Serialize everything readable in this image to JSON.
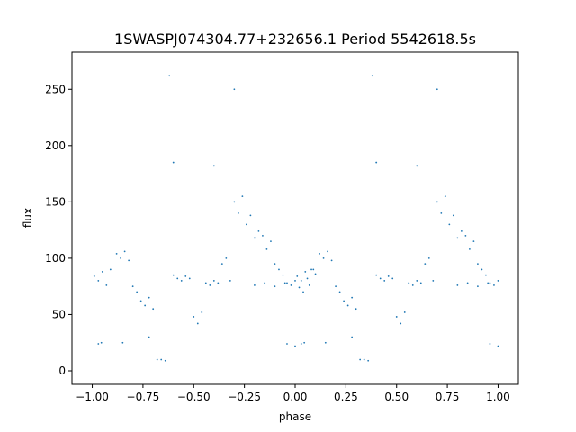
{
  "chart_data": {
    "type": "scatter",
    "title": "1SWASPJ074304.77+232656.1 Period 5542618.5s",
    "xlabel": "phase",
    "ylabel": "flux",
    "xlim": [
      -1.1,
      1.1
    ],
    "ylim": [
      -12,
      283
    ],
    "xticks": [
      -1.0,
      -0.75,
      -0.5,
      -0.25,
      0.0,
      0.25,
      0.5,
      0.75,
      1.0
    ],
    "xtick_labels": [
      "−1.00",
      "−0.75",
      "−0.50",
      "−0.25",
      "0.00",
      "0.25",
      "0.50",
      "0.75",
      "1.00"
    ],
    "yticks": [
      0,
      50,
      100,
      150,
      200,
      250
    ],
    "ytick_labels": [
      "0",
      "50",
      "100",
      "150",
      "200",
      "250"
    ],
    "grid": false,
    "marker_color": "#1f77b4",
    "series": [
      {
        "values_note": "phase-folded light curve repeated over two cycles (points at phase p and p+1)",
        "points": [
          [
            -0.99,
            84
          ],
          [
            -0.97,
            80
          ],
          [
            -0.95,
            88
          ],
          [
            -0.93,
            76
          ],
          [
            -0.91,
            90
          ],
          [
            -0.97,
            24
          ],
          [
            -0.955,
            25
          ],
          [
            -0.88,
            104
          ],
          [
            -0.86,
            100
          ],
          [
            -0.84,
            106
          ],
          [
            -0.82,
            98
          ],
          [
            -0.8,
            75
          ],
          [
            -0.78,
            70
          ],
          [
            -0.76,
            62
          ],
          [
            -0.74,
            58
          ],
          [
            -0.72,
            65
          ],
          [
            -0.7,
            55
          ],
          [
            -0.68,
            10
          ],
          [
            -0.66,
            10
          ],
          [
            -0.64,
            9
          ],
          [
            -0.6,
            85
          ],
          [
            -0.58,
            82
          ],
          [
            -0.56,
            80
          ],
          [
            -0.54,
            84
          ],
          [
            -0.52,
            82
          ],
          [
            -0.5,
            48
          ],
          [
            -0.48,
            42
          ],
          [
            -0.46,
            52
          ],
          [
            -0.44,
            78
          ],
          [
            -0.42,
            76
          ],
          [
            -0.4,
            80
          ],
          [
            -0.38,
            78
          ],
          [
            -0.36,
            95
          ],
          [
            -0.34,
            100
          ],
          [
            -0.32,
            80
          ],
          [
            -0.3,
            150
          ],
          [
            -0.28,
            140
          ],
          [
            -0.26,
            155
          ],
          [
            -0.24,
            130
          ],
          [
            -0.22,
            138
          ],
          [
            -0.2,
            118
          ],
          [
            -0.18,
            124
          ],
          [
            -0.16,
            120
          ],
          [
            -0.14,
            108
          ],
          [
            -0.12,
            115
          ],
          [
            -0.1,
            95
          ],
          [
            -0.08,
            90
          ],
          [
            -0.06,
            85
          ],
          [
            -0.04,
            78
          ],
          [
            -0.02,
            76
          ],
          [
            0.0,
            80
          ],
          [
            0.02,
            74
          ],
          [
            0.04,
            70
          ],
          [
            0.06,
            82
          ],
          [
            0.08,
            90
          ],
          [
            0.1,
            86
          ],
          [
            -0.2,
            76
          ],
          [
            -0.15,
            78
          ],
          [
            -0.1,
            75
          ],
          [
            -0.05,
            78
          ],
          [
            0.0,
            22
          ],
          [
            -0.04,
            24
          ],
          [
            -0.6,
            185
          ],
          [
            -0.4,
            182
          ],
          [
            -0.3,
            250
          ],
          [
            -0.62,
            262
          ],
          [
            -0.85,
            25
          ],
          [
            -0.72,
            30
          ],
          [
            0.01,
            84
          ],
          [
            0.03,
            80
          ],
          [
            0.05,
            88
          ],
          [
            0.07,
            76
          ],
          [
            0.09,
            90
          ],
          [
            0.03,
            24
          ],
          [
            0.045,
            25
          ],
          [
            0.12,
            104
          ],
          [
            0.14,
            100
          ],
          [
            0.16,
            106
          ],
          [
            0.18,
            98
          ],
          [
            0.2,
            75
          ],
          [
            0.22,
            70
          ],
          [
            0.24,
            62
          ],
          [
            0.26,
            58
          ],
          [
            0.28,
            65
          ],
          [
            0.3,
            55
          ],
          [
            0.32,
            10
          ],
          [
            0.34,
            10
          ],
          [
            0.36,
            9
          ],
          [
            0.4,
            85
          ],
          [
            0.42,
            82
          ],
          [
            0.44,
            80
          ],
          [
            0.46,
            84
          ],
          [
            0.48,
            82
          ],
          [
            0.5,
            48
          ],
          [
            0.52,
            42
          ],
          [
            0.54,
            52
          ],
          [
            0.56,
            78
          ],
          [
            0.58,
            76
          ],
          [
            0.6,
            80
          ],
          [
            0.62,
            78
          ],
          [
            0.64,
            95
          ],
          [
            0.66,
            100
          ],
          [
            0.68,
            80
          ],
          [
            0.7,
            150
          ],
          [
            0.72,
            140
          ],
          [
            0.74,
            155
          ],
          [
            0.76,
            130
          ],
          [
            0.78,
            138
          ],
          [
            0.8,
            118
          ],
          [
            0.82,
            124
          ],
          [
            0.84,
            120
          ],
          [
            0.86,
            108
          ],
          [
            0.88,
            115
          ],
          [
            0.9,
            95
          ],
          [
            0.92,
            90
          ],
          [
            0.94,
            85
          ],
          [
            0.96,
            78
          ],
          [
            0.98,
            76
          ],
          [
            1.0,
            80
          ],
          [
            0.8,
            76
          ],
          [
            0.85,
            78
          ],
          [
            0.9,
            75
          ],
          [
            0.95,
            78
          ],
          [
            1.0,
            22
          ],
          [
            0.96,
            24
          ],
          [
            0.4,
            185
          ],
          [
            0.6,
            182
          ],
          [
            0.7,
            250
          ],
          [
            0.38,
            262
          ],
          [
            0.15,
            25
          ],
          [
            0.28,
            30
          ]
        ]
      }
    ]
  }
}
